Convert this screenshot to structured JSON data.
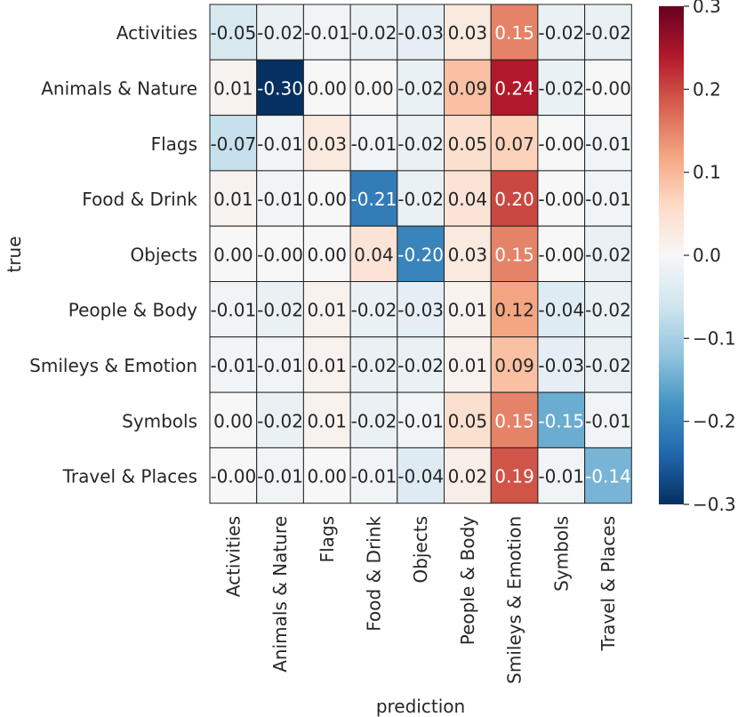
{
  "chart_data": {
    "type": "heatmap",
    "xlabel": "prediction",
    "ylabel": "true",
    "x_categories": [
      "Activities",
      "Animals & Nature",
      "Flags",
      "Food & Drink",
      "Objects",
      "People & Body",
      "Smileys & Emotion",
      "Symbols",
      "Travel & Places"
    ],
    "y_categories": [
      "Activities",
      "Animals & Nature",
      "Flags",
      "Food & Drink",
      "Objects",
      "People & Body",
      "Smileys & Emotion",
      "Symbols",
      "Travel & Places"
    ],
    "values": [
      [
        -0.05,
        -0.02,
        -0.01,
        -0.02,
        -0.03,
        0.03,
        0.15,
        -0.02,
        -0.02
      ],
      [
        0.01,
        -0.3,
        0.0,
        0.0,
        -0.02,
        0.09,
        0.24,
        -0.02,
        -0.0
      ],
      [
        -0.07,
        -0.01,
        0.03,
        -0.01,
        -0.02,
        0.05,
        0.07,
        -0.0,
        -0.01
      ],
      [
        0.01,
        -0.01,
        0.0,
        -0.21,
        -0.02,
        0.04,
        0.2,
        -0.0,
        -0.01
      ],
      [
        0.0,
        -0.0,
        0.0,
        0.04,
        -0.2,
        0.03,
        0.15,
        -0.0,
        -0.02
      ],
      [
        -0.01,
        -0.02,
        0.01,
        -0.02,
        -0.03,
        0.01,
        0.12,
        -0.04,
        -0.02
      ],
      [
        -0.01,
        -0.01,
        0.01,
        -0.02,
        -0.02,
        0.01,
        0.09,
        -0.03,
        -0.02
      ],
      [
        0.0,
        -0.02,
        0.01,
        -0.02,
        -0.01,
        0.05,
        0.15,
        -0.15,
        -0.01
      ],
      [
        -0.0,
        -0.01,
        0.0,
        -0.01,
        -0.04,
        0.02,
        0.19,
        -0.01,
        -0.14
      ]
    ],
    "cell_labels": [
      [
        "-0.05",
        "-0.02",
        "-0.01",
        "-0.02",
        "-0.03",
        "0.03",
        "0.15",
        "-0.02",
        "-0.02"
      ],
      [
        "0.01",
        "-0.30",
        "0.00",
        "0.00",
        "-0.02",
        "0.09",
        "0.24",
        "-0.02",
        "-0.00"
      ],
      [
        "-0.07",
        "-0.01",
        "0.03",
        "-0.01",
        "-0.02",
        "0.05",
        "0.07",
        "-0.00",
        "-0.01"
      ],
      [
        "0.01",
        "-0.01",
        "0.00",
        "-0.21",
        "-0.02",
        "0.04",
        "0.20",
        "-0.00",
        "-0.01"
      ],
      [
        "0.00",
        "-0.00",
        "0.00",
        "0.04",
        "-0.20",
        "0.03",
        "0.15",
        "-0.00",
        "-0.02"
      ],
      [
        "-0.01",
        "-0.02",
        "0.01",
        "-0.02",
        "-0.03",
        "0.01",
        "0.12",
        "-0.04",
        "-0.02"
      ],
      [
        "-0.01",
        "-0.01",
        "0.01",
        "-0.02",
        "-0.02",
        "0.01",
        "0.09",
        "-0.03",
        "-0.02"
      ],
      [
        "0.00",
        "-0.02",
        "0.01",
        "-0.02",
        "-0.01",
        "0.05",
        "0.15",
        "-0.15",
        "-0.01"
      ],
      [
        "-0.00",
        "-0.01",
        "0.00",
        "-0.01",
        "-0.04",
        "0.02",
        "0.19",
        "-0.01",
        "-0.14"
      ]
    ],
    "colorbar": {
      "colormap": "RdBu_r",
      "vmin": -0.3,
      "vmax": 0.3,
      "ticks": [
        0.3,
        0.2,
        0.1,
        0.0,
        -0.1,
        -0.2,
        -0.3
      ],
      "tick_labels": [
        "0.3",
        "0.2",
        "0.1",
        "0.0",
        "−0.1",
        "−0.2",
        "−0.3"
      ]
    }
  }
}
